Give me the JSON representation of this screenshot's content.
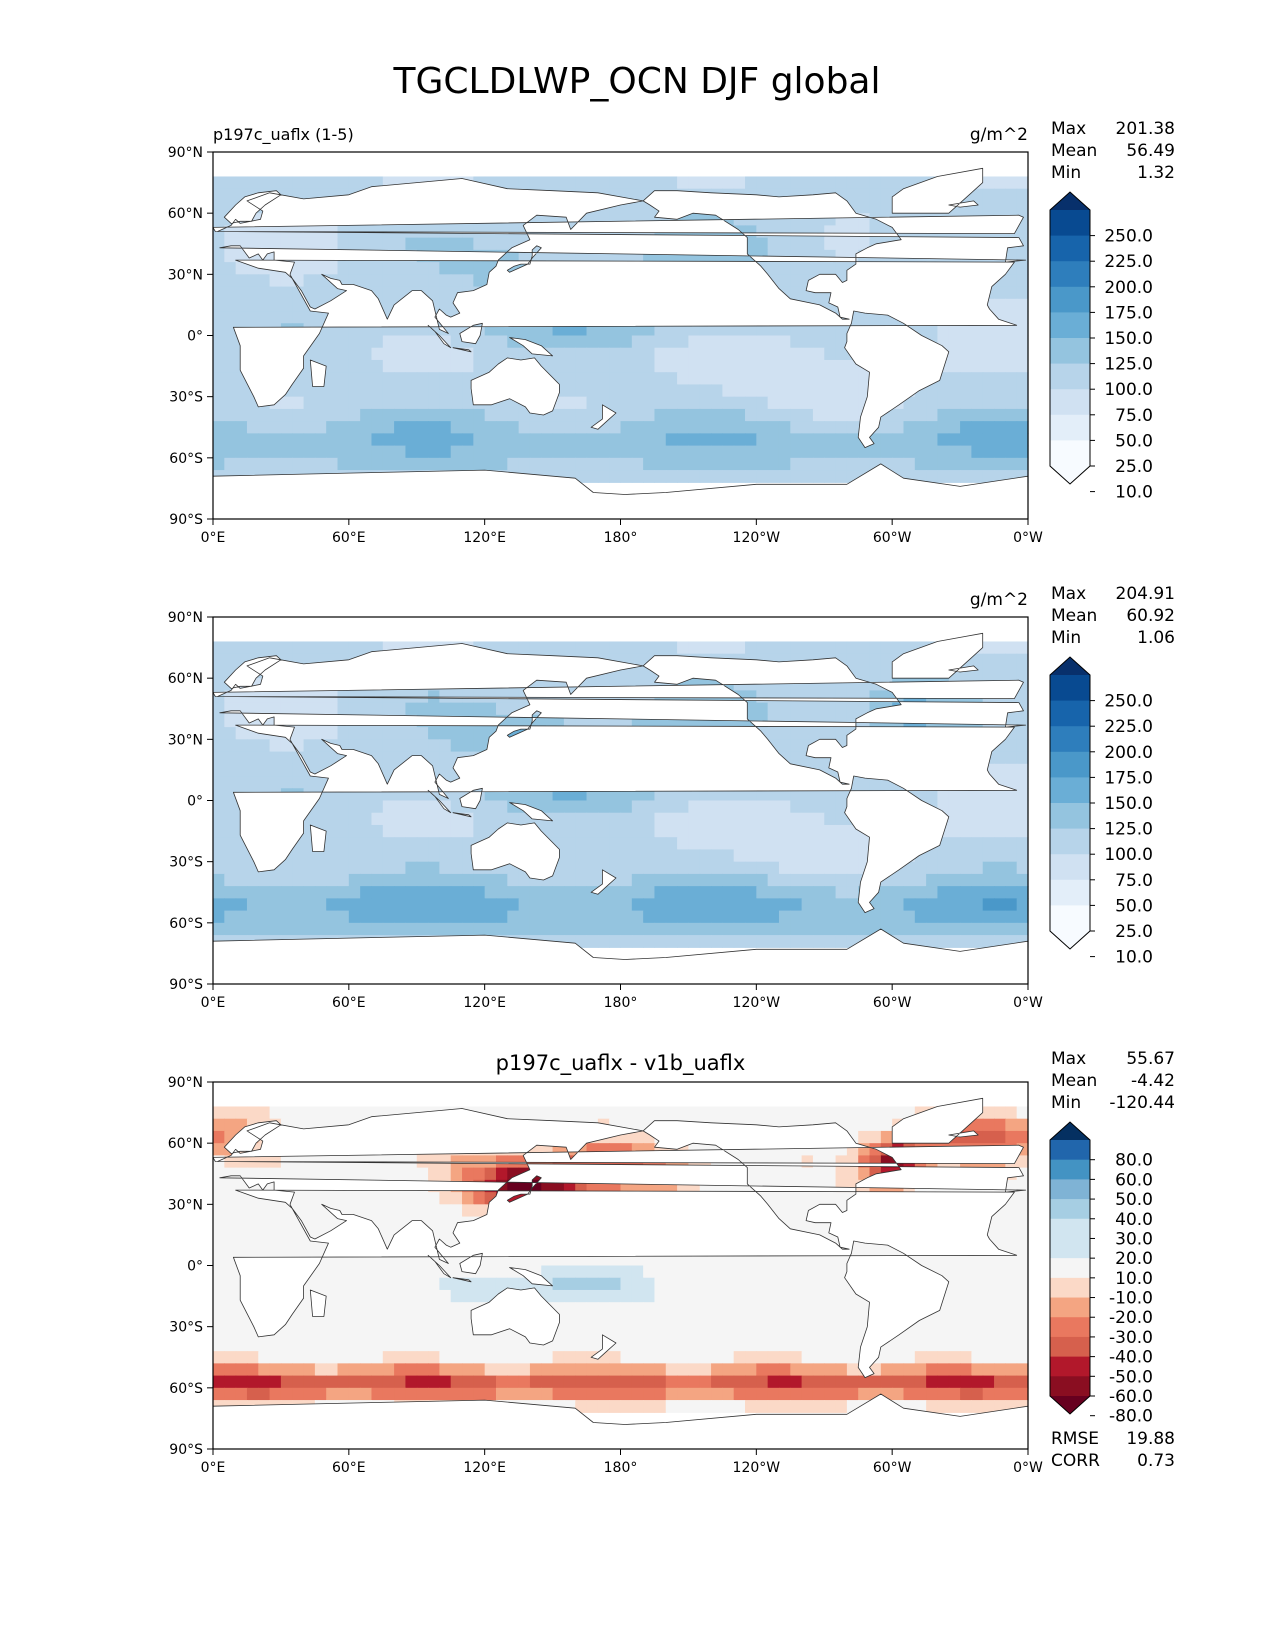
{
  "title": "TGCLDLWP_OCN DJF global",
  "tick_labels": {
    "lat": [
      "90°N",
      "60°N",
      "30°N",
      "0°",
      "30°S",
      "60°S",
      "90°S"
    ],
    "lon": [
      "0°E",
      "60°E",
      "120°E",
      "180°",
      "120°W",
      "60°W",
      "0°W"
    ]
  },
  "colors": {
    "blues": [
      "#f7fbff",
      "#e3eef9",
      "#d0e1f2",
      "#b7d4ea",
      "#94c4df",
      "#6aaed6",
      "#4a98c9",
      "#2e7ebc",
      "#1764ab",
      "#084a91",
      "#08306b"
    ],
    "diverging_pos": [
      "#d1e5f0",
      "#a6cee3",
      "#7fb3d5",
      "#4393c3",
      "#2166ac",
      "#053061"
    ],
    "diverging_neg": [
      "#fbd9c7",
      "#f4a582",
      "#e9785f",
      "#d6604d",
      "#b2182b",
      "#8a0e21",
      "#67001f"
    ],
    "neutral": "#f5f5f5",
    "land": "#ffffff",
    "coast": "#333333"
  },
  "panels": [
    {
      "subtitle_left": "p197c_uaflx (1-5)",
      "subtitle_center": "",
      "units": "g/m^2",
      "stats": [
        [
          "Max",
          "201.38"
        ],
        [
          "Mean",
          "56.49"
        ],
        [
          "Min",
          "1.32"
        ]
      ],
      "colorbar": {
        "type": "sequential",
        "ticks": [
          "250.0",
          "225.0",
          "200.0",
          "175.0",
          "150.0",
          "125.0",
          "100.0",
          "75.0",
          "50.0",
          "25.0",
          "10.0"
        ]
      },
      "footer_stats": []
    },
    {
      "subtitle_left": "",
      "subtitle_center": "",
      "units": "g/m^2",
      "stats": [
        [
          "Max",
          "204.91"
        ],
        [
          "Mean",
          "60.92"
        ],
        [
          "Min",
          "1.06"
        ]
      ],
      "colorbar": {
        "type": "sequential",
        "ticks": [
          "250.0",
          "225.0",
          "200.0",
          "175.0",
          "150.0",
          "125.0",
          "100.0",
          "75.0",
          "50.0",
          "25.0",
          "10.0"
        ]
      },
      "footer_stats": []
    },
    {
      "subtitle_left": "",
      "subtitle_center": "p197c_uaflx - v1b_uaflx",
      "units": "",
      "stats": [
        [
          "Max",
          "55.67"
        ],
        [
          "Mean",
          "-4.42"
        ],
        [
          "Min",
          "-120.44"
        ]
      ],
      "colorbar": {
        "type": "diverging",
        "ticks": [
          "80.0",
          "60.0",
          "50.0",
          "40.0",
          "30.0",
          "20.0",
          "10.0",
          "-10.0",
          "-20.0",
          "-30.0",
          "-40.0",
          "-50.0",
          "-60.0",
          "-80.0"
        ]
      },
      "footer_stats": [
        [
          "RMSE",
          "19.88"
        ],
        [
          "CORR",
          "0.73"
        ]
      ]
    }
  ]
}
